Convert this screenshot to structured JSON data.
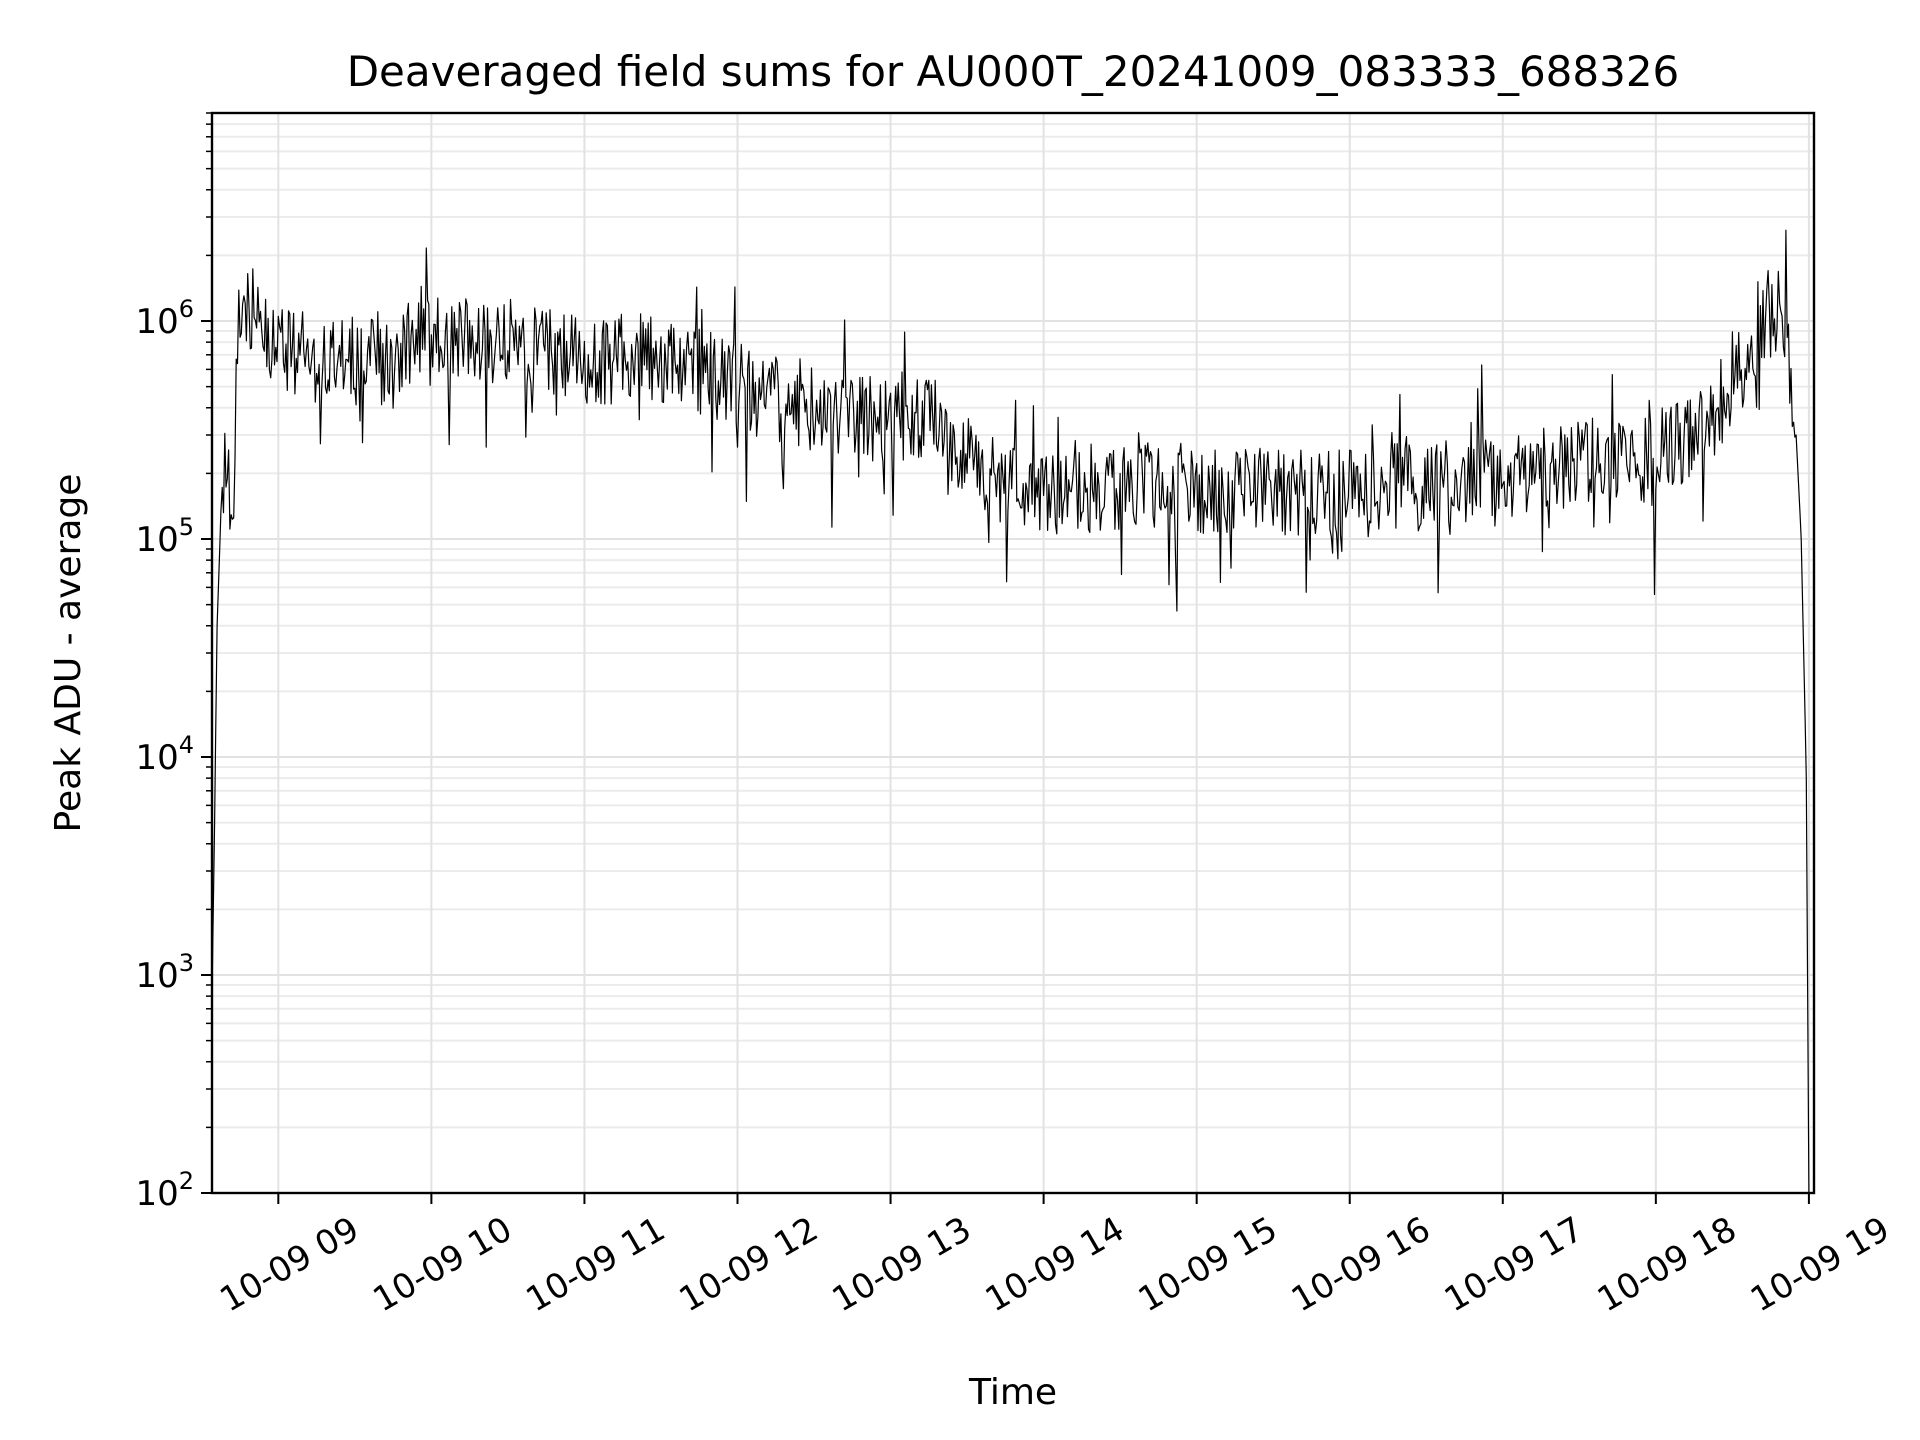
{
  "chart_data": {
    "type": "line",
    "title": "Deaveraged field sums for AU000T_20241009_083333_688326",
    "xlabel": "Time",
    "ylabel": "Peak ADU - average",
    "yscale": "log",
    "ylim": [
      100,
      9000000
    ],
    "xlim": [
      "2024-10-09 08:34",
      "2024-10-09 19:02"
    ],
    "grid": "on (major and minor)",
    "x_ticks": [
      {
        "t": "2024-10-09 09:00",
        "label": "10-09 09"
      },
      {
        "t": "2024-10-09 10:00",
        "label": "10-09 10"
      },
      {
        "t": "2024-10-09 11:00",
        "label": "10-09 11"
      },
      {
        "t": "2024-10-09 12:00",
        "label": "10-09 12"
      },
      {
        "t": "2024-10-09 13:00",
        "label": "10-09 13"
      },
      {
        "t": "2024-10-09 14:00",
        "label": "10-09 14"
      },
      {
        "t": "2024-10-09 15:00",
        "label": "10-09 15"
      },
      {
        "t": "2024-10-09 16:00",
        "label": "10-09 16"
      },
      {
        "t": "2024-10-09 17:00",
        "label": "10-09 17"
      },
      {
        "t": "2024-10-09 18:00",
        "label": "10-09 18"
      },
      {
        "t": "2024-10-09 19:00",
        "label": "10-09 19"
      }
    ],
    "y_ticks": [
      {
        "value": 100,
        "base": "10",
        "exp": "2"
      },
      {
        "value": 1000,
        "base": "10",
        "exp": "3"
      },
      {
        "value": 10000,
        "base": "10",
        "exp": "4"
      },
      {
        "value": 100000,
        "base": "10",
        "exp": "5"
      },
      {
        "value": 1000000,
        "base": "10",
        "exp": "6"
      }
    ],
    "series": [
      {
        "color": "#000000",
        "x": [
          "2024-10-09 08:34",
          "2024-10-09 08:35",
          "2024-10-09 08:36",
          "2024-10-09 08:38",
          "2024-10-09 08:40",
          "2024-10-09 08:42",
          "2024-10-09 08:44",
          "2024-10-09 08:46",
          "2024-10-09 08:48",
          "2024-10-09 08:50",
          "2024-10-09 08:52",
          "2024-10-09 08:54",
          "2024-10-09 08:56",
          "2024-10-09 08:58",
          "2024-10-09 09:00",
          "2024-10-09 09:10",
          "2024-10-09 09:20",
          "2024-10-09 09:30",
          "2024-10-09 09:40",
          "2024-10-09 09:50",
          "2024-10-09 10:00",
          "2024-10-09 10:10",
          "2024-10-09 10:20",
          "2024-10-09 10:30",
          "2024-10-09 10:40",
          "2024-10-09 10:50",
          "2024-10-09 11:00",
          "2024-10-09 11:10",
          "2024-10-09 11:20",
          "2024-10-09 11:30",
          "2024-10-09 11:40",
          "2024-10-09 11:50",
          "2024-10-09 12:00",
          "2024-10-09 12:10",
          "2024-10-09 12:20",
          "2024-10-09 12:30",
          "2024-10-09 12:40",
          "2024-10-09 12:50",
          "2024-10-09 13:00",
          "2024-10-09 13:10",
          "2024-10-09 13:20",
          "2024-10-09 13:30",
          "2024-10-09 13:40",
          "2024-10-09 13:50",
          "2024-10-09 14:00",
          "2024-10-09 14:15",
          "2024-10-09 14:30",
          "2024-10-09 14:45",
          "2024-10-09 15:00",
          "2024-10-09 15:15",
          "2024-10-09 15:30",
          "2024-10-09 15:45",
          "2024-10-09 16:00",
          "2024-10-09 16:15",
          "2024-10-09 16:30",
          "2024-10-09 16:45",
          "2024-10-09 17:00",
          "2024-10-09 17:15",
          "2024-10-09 17:30",
          "2024-10-09 17:45",
          "2024-10-09 18:00",
          "2024-10-09 18:10",
          "2024-10-09 18:20",
          "2024-10-09 18:30",
          "2024-10-09 18:36",
          "2024-10-09 18:40",
          "2024-10-09 18:44",
          "2024-10-09 18:48",
          "2024-10-09 18:52",
          "2024-10-09 18:55",
          "2024-10-09 18:57",
          "2024-10-09 18:59",
          "2024-10-09 19:00"
        ],
        "y": [
          800,
          5000,
          40000,
          200000,
          250000,
          100000,
          1000000,
          1300000,
          900000,
          1100000,
          900000,
          900000,
          800000,
          700000,
          800000,
          700000,
          650000,
          650000,
          700000,
          750000,
          800000,
          850000,
          800000,
          750000,
          750000,
          700000,
          650000,
          650000,
          700000,
          650000,
          600000,
          550000,
          500000,
          450000,
          450000,
          400000,
          380000,
          350000,
          350000,
          380000,
          300000,
          250000,
          200000,
          170000,
          160000,
          170000,
          170000,
          175000,
          170000,
          170000,
          165000,
          160000,
          160000,
          170000,
          175000,
          180000,
          185000,
          200000,
          220000,
          230000,
          240000,
          280000,
          350000,
          500000,
          700000,
          1000000,
          1100000,
          1100000,
          700000,
          300000,
          100000,
          8000,
          100
        ]
      }
    ]
  }
}
